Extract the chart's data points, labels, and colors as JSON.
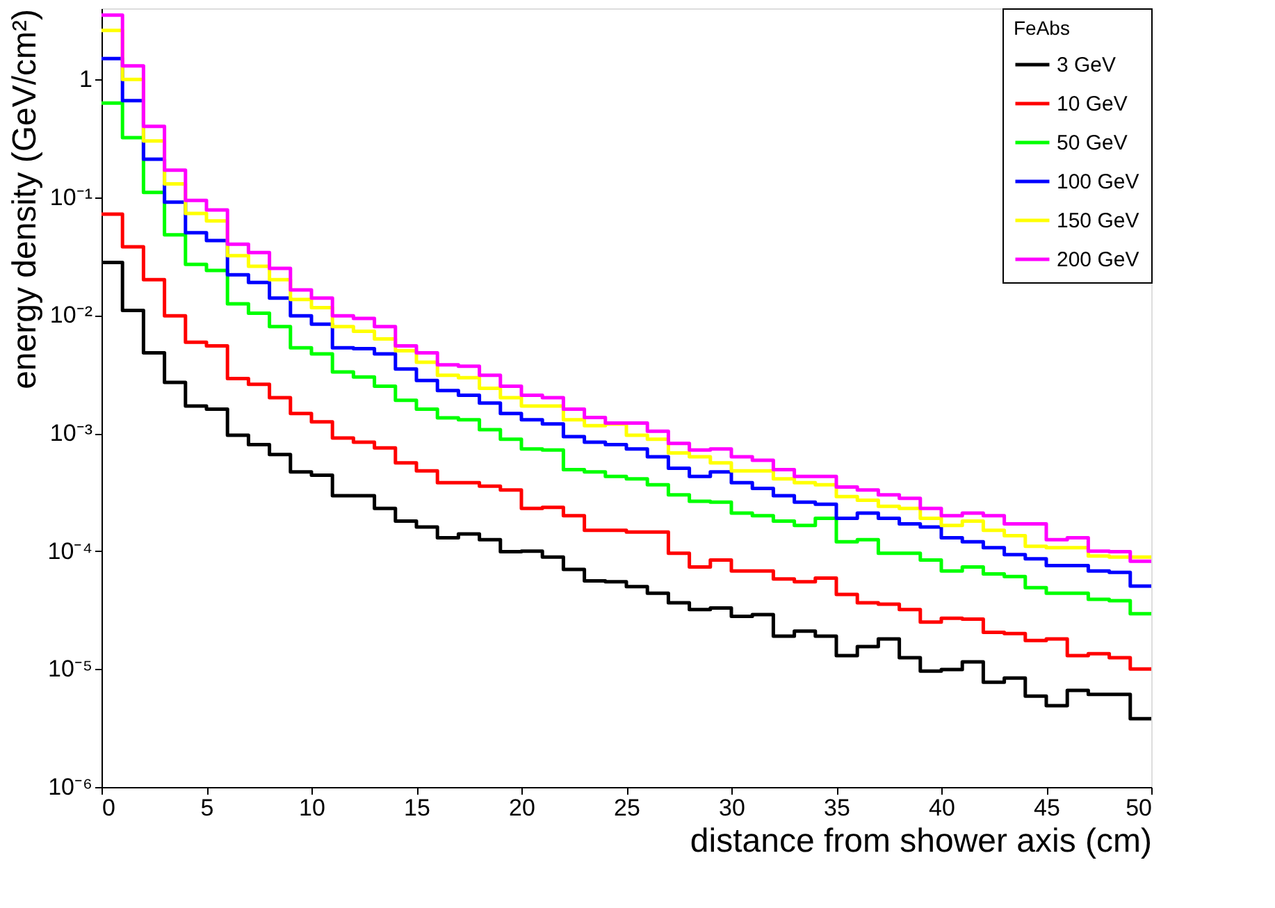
{
  "chart_data": {
    "type": "histogram",
    "xlabel": "distance from shower axis (cm)",
    "ylabel": "energy density (GeV/cm²)",
    "legend_title": "FeAbs",
    "bins": [
      0,
      1,
      2,
      3,
      4,
      5,
      6,
      7,
      8,
      9,
      10,
      11,
      12,
      13,
      14,
      15,
      16,
      17,
      18,
      19,
      20,
      21,
      22,
      23,
      24,
      25,
      26,
      27,
      28,
      29,
      30,
      31,
      32,
      33,
      34,
      35,
      36,
      37,
      38,
      39,
      40,
      41,
      42,
      43,
      44,
      45,
      46,
      47,
      48,
      49,
      50
    ],
    "series": [
      {
        "name": "3 GeV",
        "color": "#000000",
        "values": [
          0.028,
          0.011,
          0.0048,
          0.0027,
          0.0017,
          0.0016,
          0.00096,
          0.0008,
          0.00066,
          0.00047,
          0.00044,
          0.000295,
          0.000295,
          0.00023,
          0.00018,
          0.00016,
          0.00013,
          0.00014,
          0.000125,
          9.9e-05,
          0.0001,
          8.9e-05,
          7e-05,
          5.6e-05,
          5.5e-05,
          5e-05,
          4.4e-05,
          3.65e-05,
          3.2e-05,
          3.3e-05,
          2.8e-05,
          2.9e-05,
          1.9e-05,
          2.1e-05,
          1.9e-05,
          1.3e-05,
          1.55e-05,
          1.8e-05,
          1.25e-05,
          9.6e-06,
          9.9e-06,
          1.15e-05,
          7.75e-06,
          8.4e-06,
          5.9e-06,
          4.9e-06,
          6.6e-06,
          6.1e-06,
          6.1e-06,
          3.8e-06
        ]
      },
      {
        "name": "10 GeV",
        "color": "#ff0000",
        "values": [
          0.072,
          0.038,
          0.02,
          0.0099,
          0.0059,
          0.0055,
          0.0029,
          0.0026,
          0.002,
          0.00147,
          0.00125,
          0.00091,
          0.00084,
          0.00075,
          0.00056,
          0.00048,
          0.00038,
          0.00038,
          0.000355,
          0.00033,
          0.00023,
          0.000235,
          0.0002,
          0.00015,
          0.00015,
          0.000145,
          0.000145,
          9.6e-05,
          7.35e-05,
          8.4e-05,
          6.8e-05,
          6.8e-05,
          5.8e-05,
          5.5e-05,
          5.9e-05,
          4.3e-05,
          3.65e-05,
          3.55e-05,
          3.2e-05,
          2.5e-05,
          2.7e-05,
          2.65e-05,
          2.05e-05,
          2e-05,
          1.75e-05,
          1.8e-05,
          1.3e-05,
          1.35e-05,
          1.25e-05,
          1e-05
        ]
      },
      {
        "name": "50 GeV",
        "color": "#00ff00",
        "values": [
          0.63,
          0.32,
          0.11,
          0.048,
          0.027,
          0.024,
          0.0125,
          0.0104,
          0.008,
          0.0053,
          0.0047,
          0.0033,
          0.003,
          0.0025,
          0.0019,
          0.0016,
          0.00135,
          0.0013,
          0.00107,
          0.00089,
          0.000735,
          0.00072,
          0.00049,
          0.00047,
          0.00043,
          0.00041,
          0.000365,
          0.0003,
          0.000265,
          0.00026,
          0.00021,
          0.0002,
          0.00018,
          0.000165,
          0.00019,
          0.00012,
          0.000125,
          9.6e-05,
          9.6e-05,
          8.4e-05,
          6.8e-05,
          7.35e-05,
          6.4e-05,
          6.1e-05,
          4.9e-05,
          4.4e-05,
          4.4e-05,
          3.9e-05,
          3.8e-05,
          2.95e-05
        ]
      },
      {
        "name": "100 GeV",
        "color": "#0000ff",
        "values": [
          1.5,
          0.66,
          0.21,
          0.091,
          0.05,
          0.043,
          0.022,
          0.019,
          0.014,
          0.0099,
          0.0084,
          0.0053,
          0.0052,
          0.0047,
          0.0035,
          0.0028,
          0.0023,
          0.0021,
          0.0018,
          0.00147,
          0.0013,
          0.0012,
          0.000935,
          0.00084,
          0.0008,
          0.000735,
          0.00063,
          0.000505,
          0.00043,
          0.00047,
          0.00038,
          0.00034,
          0.000295,
          0.00026,
          0.00025,
          0.00019,
          0.00021,
          0.00019,
          0.00017,
          0.00016,
          0.00013,
          0.00012,
          0.000107,
          9.35e-05,
          8.6e-05,
          7.55e-05,
          7.55e-05,
          6.8e-05,
          6.6e-05,
          5.05e-05
        ]
      },
      {
        "name": "150 GeV",
        "color": "#ffff00",
        "values": [
          2.6,
          1.0,
          0.3,
          0.13,
          0.073,
          0.063,
          0.032,
          0.026,
          0.02,
          0.0136,
          0.0116,
          0.008,
          0.0073,
          0.0063,
          0.005,
          0.004,
          0.0031,
          0.00295,
          0.0024,
          0.002,
          0.0017,
          0.0017,
          0.0013,
          0.00116,
          0.0012,
          0.00096,
          0.00089,
          0.00068,
          0.00063,
          0.00056,
          0.00048,
          0.00048,
          0.00041,
          0.00038,
          0.000365,
          0.00029,
          0.00027,
          0.00024,
          0.00023,
          0.00019,
          0.000165,
          0.00018,
          0.00015,
          0.000135,
          0.00011,
          0.000107,
          0.000107,
          9.1e-05,
          8.9e-05,
          8.9e-05
        ]
      },
      {
        "name": "200 GeV",
        "color": "#ff00ff",
        "values": [
          3.5,
          1.3,
          0.4,
          0.17,
          0.094,
          0.078,
          0.04,
          0.034,
          0.025,
          0.0164,
          0.014,
          0.0099,
          0.0094,
          0.008,
          0.0055,
          0.0048,
          0.0038,
          0.0037,
          0.0031,
          0.0025,
          0.0021,
          0.002,
          0.0016,
          0.00136,
          0.00122,
          0.00122,
          0.00104,
          0.00082,
          0.00072,
          0.000735,
          0.00063,
          0.00059,
          0.00049,
          0.00043,
          0.00043,
          0.00035,
          0.00033,
          0.0003,
          0.00028,
          0.00023,
          0.0002,
          0.00021,
          0.0002,
          0.00017,
          0.00017,
          0.000125,
          0.00013,
          0.0001,
          9.9e-05,
          8.2e-05
        ]
      }
    ],
    "xlim": [
      0,
      50
    ],
    "xticks": [
      0,
      5,
      10,
      15,
      20,
      25,
      30,
      35,
      40,
      45,
      50
    ],
    "ylim": [
      1e-06,
      4
    ],
    "yticks": [
      {
        "value": 1e-06,
        "label": "10⁻⁶"
      },
      {
        "value": 1e-05,
        "label": "10⁻⁵"
      },
      {
        "value": 0.0001,
        "label": "10⁻⁴"
      },
      {
        "value": 0.001,
        "label": "10⁻³"
      },
      {
        "value": 0.01,
        "label": "10⁻²"
      },
      {
        "value": 0.1,
        "label": "10⁻¹"
      },
      1
    ],
    "log": true,
    "grid": false,
    "legend": "top right",
    "line_style": "solid",
    "marker": "none"
  }
}
